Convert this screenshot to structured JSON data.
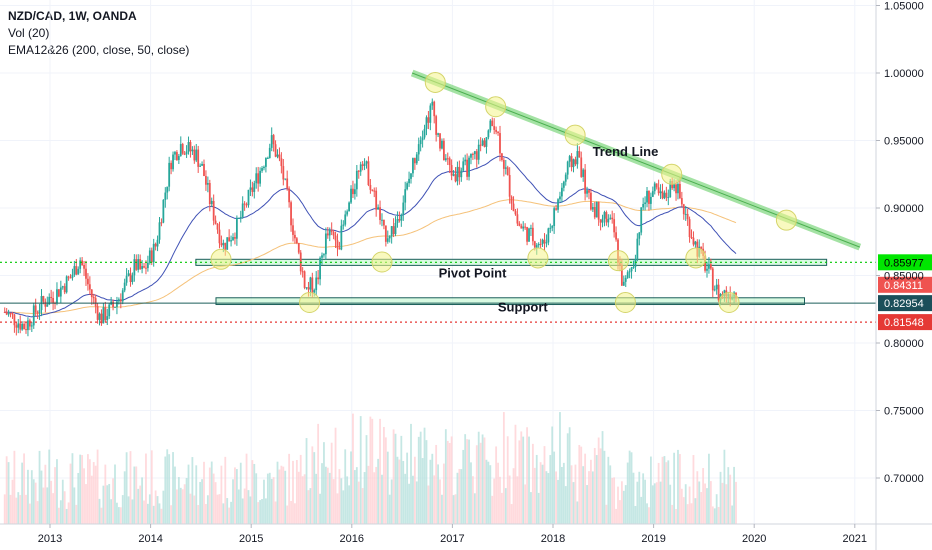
{
  "legend": {
    "symbol": "NZD/CAD, 1W, OANDA",
    "volume": "Vol (20)",
    "ema": "EMA12&26 (200, close, 50, close)"
  },
  "colors": {
    "bull": "#26a69a",
    "bear": "#ef5350",
    "ema_fast": "#3f51b5",
    "ema_slow": "#f5c27a",
    "trend": "#7dd67d",
    "pivot_line": "#00c800",
    "support_line": "#e53935",
    "zone_fill": "#b9f6ca",
    "zone_stroke": "#1b5e5a",
    "circle": "#f4f48a"
  },
  "chart_data": {
    "type": "candlestick",
    "title": "NZD/CAD, 1W, OANDA",
    "x_ticks": [
      "2013",
      "2014",
      "2015",
      "2016",
      "2017",
      "2018",
      "2019",
      "2020",
      "2021"
    ],
    "y_ticks": [
      "1.05000",
      "1.00000",
      "0.95000",
      "0.90000",
      "0.85000",
      "0.80000",
      "0.75000",
      "0.70000"
    ],
    "ylim": [
      0.665,
      1.055
    ],
    "xlim": [
      2012.55,
      2021.25
    ],
    "key_levels": [
      {
        "label": "0.85977",
        "value": 0.85977,
        "style": "green-dotted",
        "badge_color": "#00e600",
        "text_color": "#000000"
      },
      {
        "label": "0.84311",
        "value": 0.84311,
        "style": "none",
        "badge_color": "#ef5350",
        "text_color": "#ffffff"
      },
      {
        "label": "0.82954",
        "value": 0.82954,
        "style": "solid-dark",
        "badge_color": "#1b4f5a",
        "text_color": "#ffffff"
      },
      {
        "label": "0.81548",
        "value": 0.81548,
        "style": "red-dotted",
        "badge_color": "#e53935",
        "text_color": "#ffffff"
      }
    ],
    "annotations": [
      {
        "text": "Trend Line",
        "x": 2018.72,
        "y": 0.9385
      },
      {
        "text": "Pivot Point",
        "x": 2017.2,
        "y": 0.8485
      },
      {
        "text": "Support",
        "x": 2017.7,
        "y": 0.8235
      }
    ],
    "zones": [
      {
        "name": "pivot",
        "x0": 2014.45,
        "x1": 2020.72,
        "y0": 0.8575,
        "y1": 0.862
      },
      {
        "name": "support",
        "x0": 2014.65,
        "x1": 2020.5,
        "y0": 0.8285,
        "y1": 0.8335
      }
    ],
    "trend_line": {
      "x0": 2016.6,
      "y0": 1.0,
      "x1": 2021.05,
      "y1": 0.871
    },
    "touch_points": [
      {
        "x": 2016.83,
        "y": 0.993
      },
      {
        "x": 2017.43,
        "y": 0.975
      },
      {
        "x": 2018.22,
        "y": 0.954
      },
      {
        "x": 2019.18,
        "y": 0.925
      },
      {
        "x": 2020.32,
        "y": 0.891
      },
      {
        "x": 2014.7,
        "y": 0.862
      },
      {
        "x": 2016.3,
        "y": 0.86
      },
      {
        "x": 2017.85,
        "y": 0.863
      },
      {
        "x": 2018.65,
        "y": 0.861
      },
      {
        "x": 2019.42,
        "y": 0.863
      },
      {
        "x": 2015.58,
        "y": 0.83
      },
      {
        "x": 2018.72,
        "y": 0.83
      },
      {
        "x": 2019.75,
        "y": 0.83
      }
    ],
    "price_path": [
      [
        2012.55,
        0.823
      ],
      [
        2012.75,
        0.812
      ],
      [
        2012.9,
        0.828
      ],
      [
        2013.05,
        0.836
      ],
      [
        2013.2,
        0.848
      ],
      [
        2013.3,
        0.862
      ],
      [
        2013.4,
        0.838
      ],
      [
        2013.5,
        0.818
      ],
      [
        2013.62,
        0.826
      ],
      [
        2013.72,
        0.838
      ],
      [
        2013.85,
        0.858
      ],
      [
        2013.92,
        0.852
      ],
      [
        2014.05,
        0.872
      ],
      [
        2014.2,
        0.935
      ],
      [
        2014.3,
        0.947
      ],
      [
        2014.45,
        0.94
      ],
      [
        2014.52,
        0.928
      ],
      [
        2014.6,
        0.902
      ],
      [
        2014.72,
        0.872
      ],
      [
        2014.85,
        0.885
      ],
      [
        2015.0,
        0.912
      ],
      [
        2015.1,
        0.93
      ],
      [
        2015.2,
        0.95
      ],
      [
        2015.3,
        0.93
      ],
      [
        2015.45,
        0.872
      ],
      [
        2015.55,
        0.84
      ],
      [
        2015.65,
        0.845
      ],
      [
        2015.75,
        0.88
      ],
      [
        2015.88,
        0.876
      ],
      [
        2016.0,
        0.91
      ],
      [
        2016.1,
        0.94
      ],
      [
        2016.2,
        0.915
      ],
      [
        2016.32,
        0.88
      ],
      [
        2016.42,
        0.885
      ],
      [
        2016.55,
        0.915
      ],
      [
        2016.68,
        0.955
      ],
      [
        2016.8,
        0.975
      ],
      [
        2016.88,
        0.946
      ],
      [
        2017.0,
        0.925
      ],
      [
        2017.15,
        0.93
      ],
      [
        2017.3,
        0.948
      ],
      [
        2017.42,
        0.965
      ],
      [
        2017.55,
        0.92
      ],
      [
        2017.65,
        0.888
      ],
      [
        2017.8,
        0.878
      ],
      [
        2017.9,
        0.872
      ],
      [
        2018.0,
        0.893
      ],
      [
        2018.15,
        0.93
      ],
      [
        2018.25,
        0.94
      ],
      [
        2018.35,
        0.905
      ],
      [
        2018.48,
        0.895
      ],
      [
        2018.6,
        0.885
      ],
      [
        2018.7,
        0.84
      ],
      [
        2018.8,
        0.86
      ],
      [
        2018.9,
        0.905
      ],
      [
        2019.0,
        0.912
      ],
      [
        2019.1,
        0.905
      ],
      [
        2019.2,
        0.922
      ],
      [
        2019.3,
        0.898
      ],
      [
        2019.42,
        0.872
      ],
      [
        2019.55,
        0.852
      ],
      [
        2019.65,
        0.835
      ],
      [
        2019.75,
        0.838
      ],
      [
        2019.82,
        0.838
      ]
    ],
    "volume_ylim": [
      0,
      1
    ]
  },
  "annotation_labels": {
    "trend": "Trend Line",
    "pivot": "Pivot Point",
    "support": "Support"
  }
}
